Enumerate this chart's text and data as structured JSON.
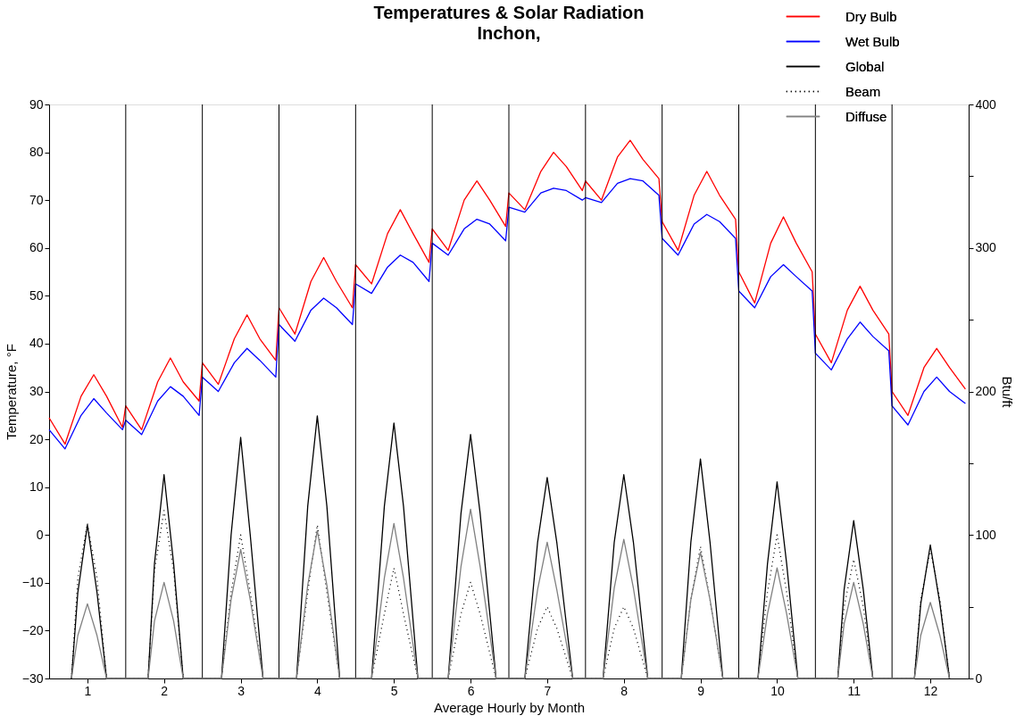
{
  "chart_data": {
    "type": "line",
    "title": "Temperatures & Solar Radiation",
    "subtitle": "Inchon,",
    "xlabel": "Average Hourly by Month",
    "ylabel": "Temperature, °F",
    "y2label": "Btu/ft",
    "xlim": [
      0,
      12
    ],
    "xticks": [
      {
        "value": 0.5,
        "label": "1"
      },
      {
        "value": 1.5,
        "label": "2"
      },
      {
        "value": 2.5,
        "label": "3"
      },
      {
        "value": 3.5,
        "label": "4"
      },
      {
        "value": 4.5,
        "label": "5"
      },
      {
        "value": 5.5,
        "label": "6"
      },
      {
        "value": 6.5,
        "label": "7"
      },
      {
        "value": 7.5,
        "label": "8"
      },
      {
        "value": 8.5,
        "label": "9"
      },
      {
        "value": 9.5,
        "label": "10"
      },
      {
        "value": 10.5,
        "label": "11"
      },
      {
        "value": 11.5,
        "label": "12"
      }
    ],
    "ylim": [
      -30,
      90
    ],
    "yticks": [
      -30,
      -20,
      -10,
      0,
      10,
      20,
      30,
      40,
      50,
      60,
      70,
      80,
      90
    ],
    "y2lim": [
      0,
      400
    ],
    "y2ticks": [
      0,
      {
        "value": 50,
        "label": null
      },
      100,
      {
        "value": 150,
        "label": null
      },
      200,
      {
        "value": 250,
        "label": null
      },
      300,
      {
        "value": 350,
        "label": null
      },
      400
    ],
    "grid": false,
    "legend": "top right",
    "line_style": "solid",
    "x": [
      0,
      0.208,
      0.417,
      0.583,
      0.75,
      0.958,
      1,
      1.208,
      1.417,
      1.583,
      1.75,
      1.958,
      2,
      2.208,
      2.417,
      2.583,
      2.75,
      2.958,
      3,
      3.208,
      3.417,
      3.583,
      3.75,
      3.958,
      4,
      4.208,
      4.417,
      4.583,
      4.75,
      4.958,
      5,
      5.208,
      5.417,
      5.583,
      5.75,
      5.958,
      6,
      6.208,
      6.417,
      6.583,
      6.75,
      6.958,
      7,
      7.208,
      7.417,
      7.583,
      7.75,
      7.958,
      8,
      8.208,
      8.417,
      8.583,
      8.75,
      8.958,
      9,
      9.208,
      9.417,
      9.583,
      9.75,
      9.958,
      10,
      10.208,
      10.417,
      10.583,
      10.75,
      10.958,
      11,
      11.208,
      11.417,
      11.583,
      11.75,
      11.958
    ],
    "ref_lines": [
      {
        "axis": "x",
        "value": 1,
        "color": "#000000"
      },
      {
        "axis": "x",
        "value": 2,
        "color": "#000000"
      },
      {
        "axis": "x",
        "value": 3,
        "color": "#000000"
      },
      {
        "axis": "x",
        "value": 4,
        "color": "#000000"
      },
      {
        "axis": "x",
        "value": 5,
        "color": "#000000"
      },
      {
        "axis": "x",
        "value": 6,
        "color": "#000000"
      },
      {
        "axis": "x",
        "value": 7,
        "color": "#000000"
      },
      {
        "axis": "x",
        "value": 8,
        "color": "#000000"
      },
      {
        "axis": "x",
        "value": 9,
        "color": "#000000"
      },
      {
        "axis": "x",
        "value": 10,
        "color": "#000000"
      },
      {
        "axis": "x",
        "value": 11,
        "color": "#000000"
      }
    ],
    "series": [
      {
        "name": "Dry Bulb",
        "color": "#ff0000",
        "values": [
          24.5,
          19,
          29,
          33.5,
          29,
          22.5,
          27,
          22,
          32,
          37,
          32,
          28,
          36,
          31.5,
          41,
          46,
          41,
          36.5,
          47.5,
          42,
          53,
          58,
          53,
          47.5,
          56.5,
          52.5,
          63,
          68,
          63,
          57,
          64,
          59.5,
          70,
          74,
          70,
          64.5,
          71.5,
          68,
          76,
          80,
          77,
          72,
          74,
          70,
          79,
          82.5,
          78.5,
          74.5,
          65.5,
          59.5,
          71,
          76,
          71,
          66,
          55,
          48.5,
          61,
          66.5,
          61,
          55,
          42,
          36,
          47,
          52,
          47,
          42,
          30,
          25,
          35,
          39,
          35,
          30.5
        ]
      },
      {
        "name": "Wet Bulb",
        "color": "#0000ff",
        "values": [
          22,
          18,
          25,
          28.5,
          25.5,
          22,
          24,
          21,
          28,
          31,
          29,
          25,
          33,
          30,
          36,
          39,
          36.5,
          33,
          44,
          40.5,
          47,
          49.5,
          47.5,
          44,
          52.5,
          50.5,
          56,
          58.5,
          57,
          53,
          61,
          58.5,
          64,
          66,
          65,
          61.5,
          68.5,
          67.5,
          71.5,
          72.5,
          72,
          70,
          70.5,
          69.5,
          73.5,
          74.5,
          74,
          71,
          62,
          58.5,
          65,
          67,
          65.5,
          62,
          51,
          47.5,
          54,
          56.5,
          54,
          51,
          38,
          34.5,
          41,
          44.5,
          41.5,
          38.5,
          27,
          23,
          30,
          33,
          30,
          27.5
        ]
      },
      {
        "name": "Global",
        "color": "#000000",
        "axis": "y2",
        "x": [
          0.292,
          0.375,
          0.5,
          0.625,
          0.75,
          1.292,
          1.375,
          1.5,
          1.625,
          1.75,
          2.25,
          2.375,
          2.5,
          2.625,
          2.792,
          3.229,
          3.375,
          3.5,
          3.625,
          3.792,
          4.208,
          4.375,
          4.5,
          4.625,
          4.813,
          5.208,
          5.375,
          5.5,
          5.625,
          5.833,
          6.208,
          6.375,
          6.5,
          6.625,
          6.833,
          7.229,
          7.375,
          7.5,
          7.625,
          7.813,
          8.25,
          8.375,
          8.5,
          8.625,
          8.792,
          9.25,
          9.375,
          9.5,
          9.625,
          9.771,
          10.292,
          10.375,
          10.5,
          10.625,
          10.75,
          11.292,
          11.375,
          11.5,
          11.625,
          11.75
        ],
        "values": [
          0,
          60,
          107,
          60,
          0,
          0,
          80,
          142,
          80,
          0,
          0,
          100,
          168,
          100,
          0,
          0,
          120,
          183,
          120,
          0,
          0,
          120,
          178,
          120,
          0,
          0,
          115,
          170,
          115,
          0,
          0,
          95,
          140,
          95,
          0,
          0,
          95,
          142,
          95,
          0,
          0,
          95,
          153,
          95,
          0,
          0,
          80,
          137,
          80,
          0,
          0,
          62,
          110,
          62,
          0,
          0,
          52,
          93,
          52,
          0
        ]
      },
      {
        "name": "Beam",
        "color": "#000000",
        "axis": "y2",
        "line_style": "dotted",
        "x": [
          0.292,
          0.375,
          0.5,
          0.625,
          0.75,
          1.292,
          1.375,
          1.5,
          1.625,
          1.75,
          2.25,
          2.375,
          2.5,
          2.625,
          2.792,
          3.229,
          3.375,
          3.5,
          3.625,
          3.792,
          4.208,
          4.375,
          4.5,
          4.625,
          4.813,
          5.208,
          5.375,
          5.5,
          5.625,
          5.833,
          6.208,
          6.375,
          6.5,
          6.625,
          6.833,
          7.229,
          7.375,
          7.5,
          7.625,
          7.813,
          8.25,
          8.375,
          8.5,
          8.625,
          8.792,
          9.25,
          9.375,
          9.5,
          9.625,
          9.771,
          10.292,
          10.375,
          10.5,
          10.625,
          10.75,
          11.292,
          11.375,
          11.5,
          11.625,
          11.75
        ],
        "values": [
          0,
          70,
          108,
          70,
          0,
          0,
          75,
          117,
          75,
          0,
          0,
          60,
          100,
          60,
          0,
          0,
          60,
          107,
          60,
          0,
          0,
          45,
          77,
          45,
          0,
          0,
          45,
          67,
          45,
          0,
          0,
          35,
          50,
          35,
          0,
          0,
          35,
          50,
          35,
          0,
          0,
          55,
          92,
          55,
          0,
          0,
          60,
          100,
          60,
          0,
          0,
          50,
          83,
          50,
          0,
          0,
          55,
          90,
          55,
          0
        ]
      },
      {
        "name": "Diffuse",
        "color": "#808080",
        "axis": "y2",
        "x": [
          0.292,
          0.375,
          0.5,
          0.625,
          0.75,
          1.292,
          1.375,
          1.5,
          1.625,
          1.75,
          2.25,
          2.375,
          2.5,
          2.625,
          2.792,
          3.229,
          3.375,
          3.5,
          3.625,
          3.792,
          4.208,
          4.375,
          4.5,
          4.625,
          4.813,
          5.208,
          5.375,
          5.5,
          5.625,
          5.833,
          6.208,
          6.375,
          6.5,
          6.625,
          6.833,
          7.229,
          7.375,
          7.5,
          7.625,
          7.813,
          8.25,
          8.375,
          8.5,
          8.625,
          8.792,
          9.25,
          9.375,
          9.5,
          9.625,
          9.771,
          10.292,
          10.375,
          10.5,
          10.625,
          10.75,
          11.292,
          11.375,
          11.5,
          11.625,
          11.75
        ],
        "values": [
          0,
          30,
          52,
          30,
          0,
          0,
          40,
          67,
          40,
          0,
          0,
          55,
          90,
          55,
          0,
          0,
          65,
          103,
          65,
          0,
          0,
          70,
          108,
          70,
          0,
          0,
          78,
          118,
          78,
          0,
          0,
          62,
          95,
          62,
          0,
          0,
          63,
          97,
          63,
          0,
          0,
          55,
          88,
          55,
          0,
          0,
          45,
          77,
          45,
          0,
          0,
          38,
          67,
          38,
          0,
          0,
          30,
          53,
          30,
          0
        ]
      }
    ]
  }
}
